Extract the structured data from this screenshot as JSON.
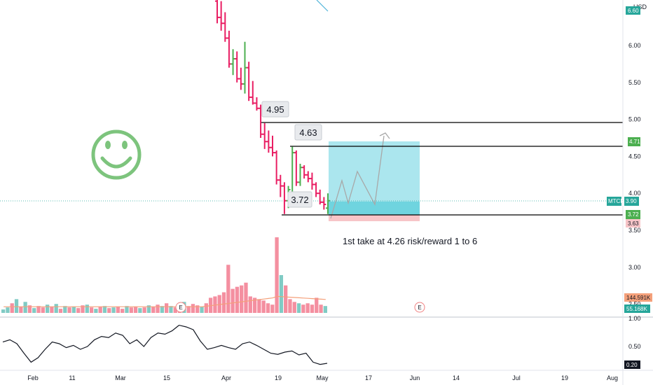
{
  "chart_data": {
    "type": "bar",
    "title": "",
    "currency": "USD",
    "symbol": "MTCR",
    "price_axis": {
      "ticks": [
        "6.00",
        "5.50",
        "5.00",
        "4.50",
        "4.00",
        "3.50",
        "3.00",
        "2.50"
      ],
      "range": [
        2.3,
        6.6
      ]
    },
    "time_axis": {
      "labels": [
        "Feb",
        "11",
        "Mar",
        "15",
        "Apr",
        "19",
        "May",
        "17",
        "Jun",
        "14",
        "Jul",
        "19",
        "Aug"
      ]
    },
    "colors": {
      "up": "#4caf50",
      "down": "#e91e63",
      "vol_up": "#80cbc4",
      "vol_down": "#f48fa0",
      "target_zone": "#8fdde8",
      "stop_zone": "#f7c5c8",
      "ma": "#f4a07a",
      "smiley": "#7dc47d"
    },
    "price_bars": [
      {
        "o": 6.6,
        "h": 6.72,
        "l": 6.3,
        "c": 6.38
      },
      {
        "o": 6.38,
        "h": 6.6,
        "l": 6.2,
        "c": 6.3
      },
      {
        "o": 6.3,
        "h": 6.45,
        "l": 6.05,
        "c": 6.1
      },
      {
        "o": 6.1,
        "h": 6.2,
        "l": 5.7,
        "c": 5.75
      },
      {
        "o": 5.75,
        "h": 5.95,
        "l": 5.6,
        "c": 5.82
      },
      {
        "o": 5.82,
        "h": 5.92,
        "l": 5.5,
        "c": 5.55
      },
      {
        "o": 5.55,
        "h": 5.7,
        "l": 5.4,
        "c": 5.48
      },
      {
        "o": 5.48,
        "h": 6.05,
        "l": 5.35,
        "c": 5.7
      },
      {
        "o": 5.7,
        "h": 5.78,
        "l": 5.25,
        "c": 5.3
      },
      {
        "o": 5.3,
        "h": 5.52,
        "l": 5.2,
        "c": 5.22
      },
      {
        "o": 5.22,
        "h": 5.3,
        "l": 5.12,
        "c": 5.15
      },
      {
        "o": 5.15,
        "h": 5.2,
        "l": 4.75,
        "c": 4.8
      },
      {
        "o": 4.8,
        "h": 4.95,
        "l": 4.6,
        "c": 4.7
      },
      {
        "o": 4.7,
        "h": 4.85,
        "l": 4.55,
        "c": 4.62
      },
      {
        "o": 4.62,
        "h": 4.78,
        "l": 4.5,
        "c": 4.55
      },
      {
        "o": 4.55,
        "h": 4.58,
        "l": 4.12,
        "c": 4.18
      },
      {
        "o": 4.18,
        "h": 4.25,
        "l": 3.95,
        "c": 4.1
      },
      {
        "o": 4.1,
        "h": 4.15,
        "l": 3.72,
        "c": 3.9
      },
      {
        "o": 3.9,
        "h": 4.1,
        "l": 3.8,
        "c": 4.05
      },
      {
        "o": 3.95,
        "h": 4.63,
        "l": 3.9,
        "c": 4.55
      },
      {
        "o": 4.55,
        "h": 4.58,
        "l": 4.1,
        "c": 4.15
      },
      {
        "o": 4.15,
        "h": 4.4,
        "l": 4.1,
        "c": 4.35
      },
      {
        "o": 4.35,
        "h": 4.38,
        "l": 4.2,
        "c": 4.25
      },
      {
        "o": 4.25,
        "h": 4.3,
        "l": 4.15,
        "c": 4.2
      },
      {
        "o": 4.2,
        "h": 4.28,
        "l": 4.05,
        "c": 4.12
      },
      {
        "o": 4.12,
        "h": 4.15,
        "l": 3.95,
        "c": 4.0
      },
      {
        "o": 4.0,
        "h": 4.05,
        "l": 3.85,
        "c": 3.88
      },
      {
        "o": 3.88,
        "h": 3.95,
        "l": 3.78,
        "c": 3.85
      },
      {
        "o": 3.8,
        "h": 4.0,
        "l": 3.72,
        "c": 3.9
      }
    ],
    "volume": [
      {
        "v": 5,
        "up": true
      },
      {
        "v": 8,
        "up": true
      },
      {
        "v": 14,
        "up": false
      },
      {
        "v": 20,
        "up": true
      },
      {
        "v": 9,
        "up": false
      },
      {
        "v": 16,
        "up": true
      },
      {
        "v": 11,
        "up": false
      },
      {
        "v": 7,
        "up": true
      },
      {
        "v": 10,
        "up": false
      },
      {
        "v": 8,
        "up": false
      },
      {
        "v": 12,
        "up": true
      },
      {
        "v": 9,
        "up": false
      },
      {
        "v": 13,
        "up": true
      },
      {
        "v": 6,
        "up": false
      },
      {
        "v": 10,
        "up": true
      },
      {
        "v": 8,
        "up": false
      },
      {
        "v": 9,
        "up": true
      },
      {
        "v": 7,
        "up": false
      },
      {
        "v": 11,
        "up": false
      },
      {
        "v": 12,
        "up": true
      },
      {
        "v": 8,
        "up": false
      },
      {
        "v": 6,
        "up": true
      },
      {
        "v": 9,
        "up": false
      },
      {
        "v": 10,
        "up": true
      },
      {
        "v": 7,
        "up": false
      },
      {
        "v": 8,
        "up": true
      },
      {
        "v": 9,
        "up": false
      },
      {
        "v": 6,
        "up": false
      },
      {
        "v": 10,
        "up": true
      },
      {
        "v": 8,
        "up": false
      },
      {
        "v": 9,
        "up": false
      },
      {
        "v": 7,
        "up": true
      },
      {
        "v": 8,
        "up": false
      },
      {
        "v": 11,
        "up": true
      },
      {
        "v": 9,
        "up": false
      },
      {
        "v": 12,
        "up": false
      },
      {
        "v": 10,
        "up": true
      },
      {
        "v": 14,
        "up": false
      },
      {
        "v": 10,
        "up": true
      },
      {
        "v": 8,
        "up": false
      },
      {
        "v": 12,
        "up": false
      },
      {
        "v": 16,
        "up": true
      },
      {
        "v": 10,
        "up": false
      },
      {
        "v": 13,
        "up": false
      },
      {
        "v": 11,
        "up": false
      },
      {
        "v": 9,
        "up": true
      },
      {
        "v": 14,
        "up": false
      },
      {
        "v": 22,
        "up": false
      },
      {
        "v": 24,
        "up": false
      },
      {
        "v": 26,
        "up": false
      },
      {
        "v": 30,
        "up": false
      },
      {
        "v": 70,
        "up": false
      },
      {
        "v": 35,
        "up": false
      },
      {
        "v": 38,
        "up": false
      },
      {
        "v": 40,
        "up": false
      },
      {
        "v": 44,
        "up": false
      },
      {
        "v": 24,
        "up": false
      },
      {
        "v": 22,
        "up": false
      },
      {
        "v": 20,
        "up": false
      },
      {
        "v": 18,
        "up": false
      },
      {
        "v": 14,
        "up": false
      },
      {
        "v": 12,
        "up": false
      },
      {
        "v": 110,
        "up": false
      },
      {
        "v": 55,
        "up": true
      },
      {
        "v": 40,
        "up": false
      },
      {
        "v": 20,
        "up": false
      },
      {
        "v": 16,
        "up": false
      },
      {
        "v": 14,
        "up": true
      },
      {
        "v": 12,
        "up": false
      },
      {
        "v": 14,
        "up": false
      },
      {
        "v": 12,
        "up": false
      },
      {
        "v": 22,
        "up": false
      },
      {
        "v": 12,
        "up": false
      },
      {
        "v": 10,
        "up": true
      }
    ],
    "oscillator": {
      "ticks": [
        "1.00",
        "0.50",
        "0.20"
      ],
      "range": [
        0.1,
        1.0
      ],
      "values": [
        0.58,
        0.62,
        0.55,
        0.38,
        0.22,
        0.3,
        0.45,
        0.58,
        0.55,
        0.48,
        0.52,
        0.45,
        0.5,
        0.62,
        0.68,
        0.66,
        0.74,
        0.7,
        0.55,
        0.62,
        0.5,
        0.66,
        0.74,
        0.72,
        0.78,
        0.88,
        0.85,
        0.8,
        0.6,
        0.45,
        0.48,
        0.52,
        0.48,
        0.45,
        0.55,
        0.58,
        0.52,
        0.45,
        0.38,
        0.36,
        0.4,
        0.42,
        0.35,
        0.38,
        0.22,
        0.18,
        0.2
      ]
    },
    "annotations": {
      "high_label": "4.95",
      "recent_high_label": "4.63",
      "low_label": "3.72",
      "note": "1st take at 4.26 risk/reward 1 to 6"
    },
    "levels": {
      "resistance": 4.95,
      "target": 4.63,
      "stop": 3.72,
      "entry": 3.9
    },
    "badges": {
      "target_price": "4.71",
      "symbol_price": "3.90",
      "stop_price": "3.72",
      "stop_low": "3.63",
      "vol_ma": "144.591K",
      "vol_now": "55.168K",
      "osc_now": "0.20",
      "top_price": "6.60",
      "earnings": "E"
    }
  }
}
